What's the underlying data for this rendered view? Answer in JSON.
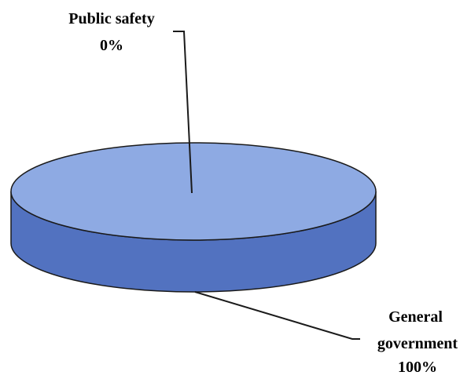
{
  "chart_data": {
    "type": "pie",
    "style": "3d",
    "title": "",
    "slices": [
      {
        "label": "Public safety",
        "value": 0,
        "value_label": "0%"
      },
      {
        "label": "General government",
        "value": 100,
        "value_label": "100%"
      }
    ],
    "legend": "none",
    "colors": {
      "top": "#8eaae3",
      "side": "#5272c0",
      "outline": "#1a1a1a",
      "leader": "#1a1a1a"
    }
  }
}
